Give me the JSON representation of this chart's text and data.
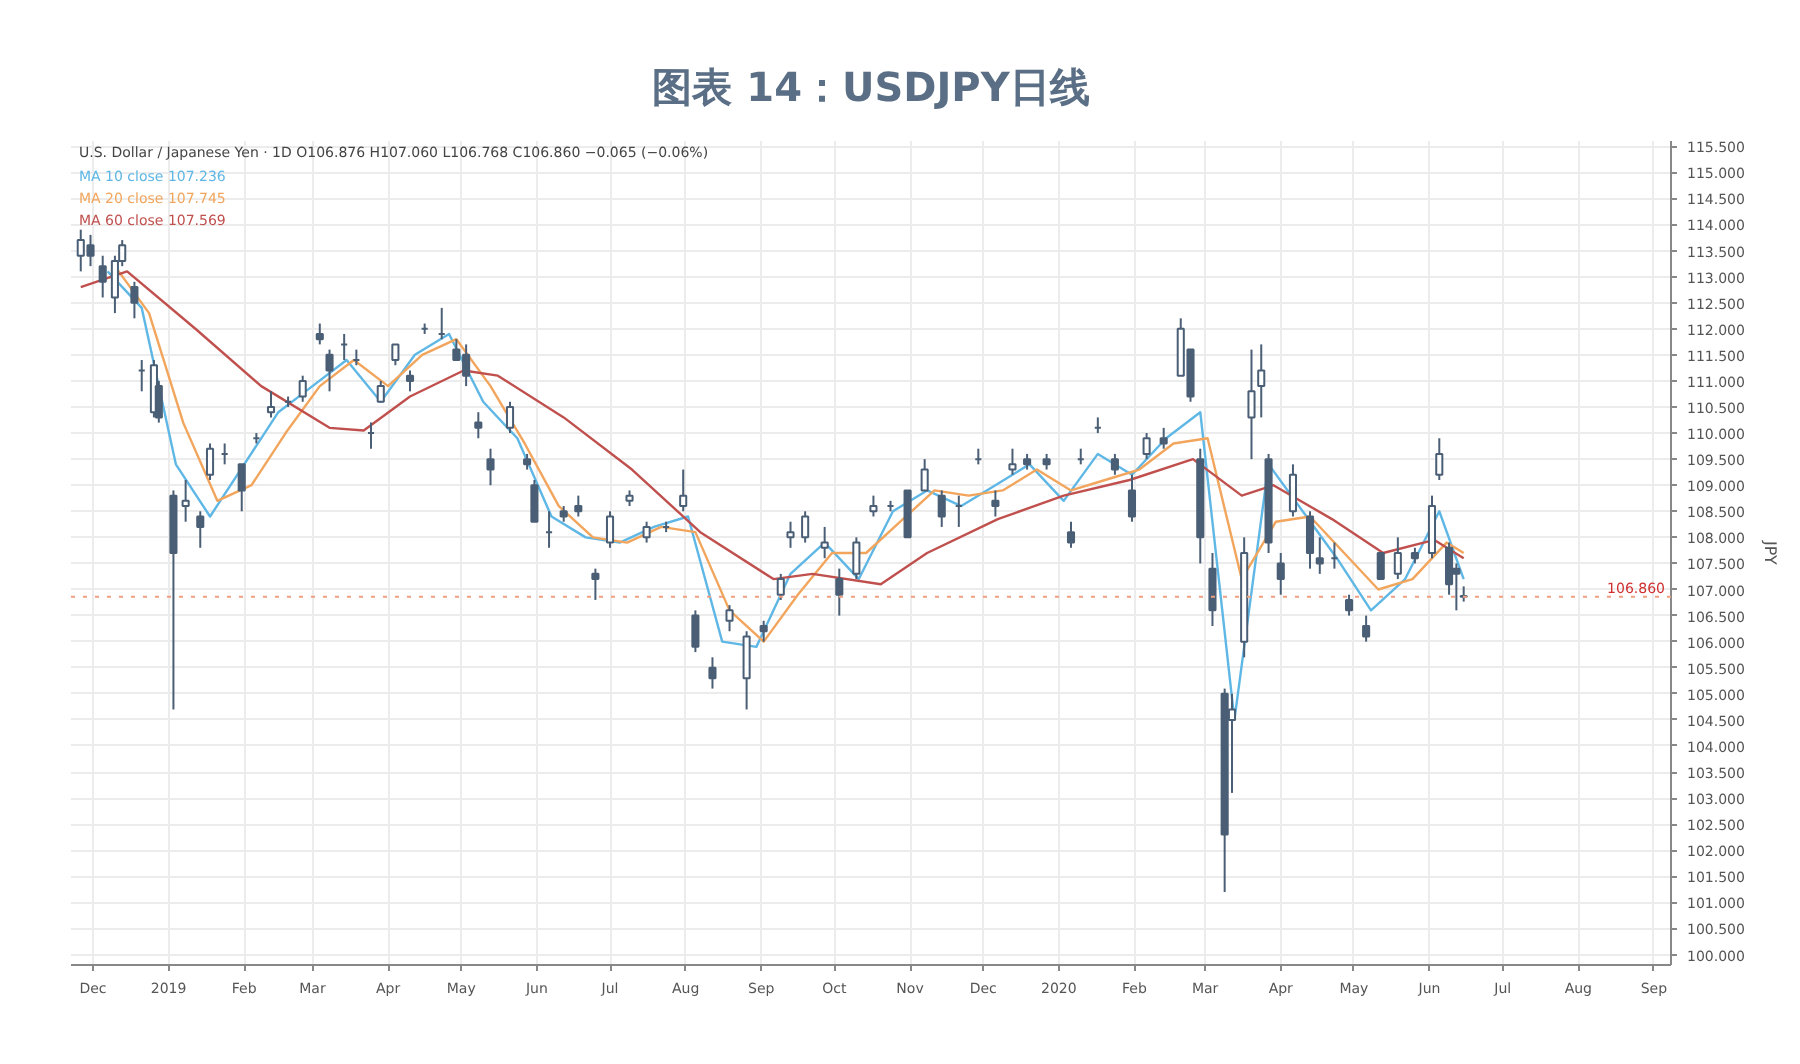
{
  "chart_data": {
    "type": "candlestick",
    "title": "图表 14：USDJPY日线",
    "ylabel": "JPY",
    "annotations": [
      "U.S. Dollar / Japanese Yen · 1D",
      "O106.876 H107.060 L106.768 C106.860 −0.065 (−0.06%)"
    ],
    "xlim": [
      "2018-11-22",
      "2020-09-08"
    ],
    "xticks": [
      {
        "value": "2018-12-01",
        "label": "Dec"
      },
      {
        "value": "2019-01-01",
        "label": "2019"
      },
      {
        "value": "2019-02-01",
        "label": "Feb"
      },
      {
        "value": "2019-03-01",
        "label": "Mar"
      },
      {
        "value": "2019-04-01",
        "label": "Apr"
      },
      {
        "value": "2019-05-01",
        "label": "May"
      },
      {
        "value": "2019-06-01",
        "label": "Jun"
      },
      {
        "value": "2019-07-01",
        "label": "Jul"
      },
      {
        "value": "2019-08-01",
        "label": "Aug"
      },
      {
        "value": "2019-09-01",
        "label": "Sep"
      },
      {
        "value": "2019-10-01",
        "label": "Oct"
      },
      {
        "value": "2019-11-01",
        "label": "Nov"
      },
      {
        "value": "2019-12-01",
        "label": "Dec"
      },
      {
        "value": "2020-01-01",
        "label": "2020"
      },
      {
        "value": "2020-02-01",
        "label": "Feb"
      },
      {
        "value": "2020-03-01",
        "label": "Mar"
      },
      {
        "value": "2020-04-01",
        "label": "Apr"
      },
      {
        "value": "2020-05-01",
        "label": "May"
      },
      {
        "value": "2020-06-01",
        "label": "Jun"
      },
      {
        "value": "2020-07-01",
        "label": "Jul"
      },
      {
        "value": "2020-08-01",
        "label": "Aug"
      },
      {
        "value": "2020-09-01",
        "label": "Sep"
      }
    ],
    "ylim": [
      99.8,
      115.6
    ],
    "yticks": [
      {
        "value": 100,
        "label": "100.000"
      },
      {
        "value": 100.5,
        "label": "100.500"
      },
      {
        "value": 101,
        "label": "101.000"
      },
      {
        "value": 101.5,
        "label": "101.500"
      },
      {
        "value": 102,
        "label": "102.000"
      },
      {
        "value": 102.5,
        "label": "102.500"
      },
      {
        "value": 103,
        "label": "103.000"
      },
      {
        "value": 103.5,
        "label": "103.500"
      },
      {
        "value": 104,
        "label": "104.000"
      },
      {
        "value": 104.5,
        "label": "104.500"
      },
      {
        "value": 105,
        "label": "105.000"
      },
      {
        "value": 105.5,
        "label": "105.500"
      },
      {
        "value": 106,
        "label": "106.000"
      },
      {
        "value": 106.5,
        "label": "106.500"
      },
      {
        "value": 107,
        "label": "107.000"
      },
      {
        "value": 107.5,
        "label": "107.500"
      },
      {
        "value": 108,
        "label": "108.000"
      },
      {
        "value": 108.5,
        "label": "108.500"
      },
      {
        "value": 109,
        "label": "109.000"
      },
      {
        "value": 109.5,
        "label": "109.500"
      },
      {
        "value": 110,
        "label": "110.000"
      },
      {
        "value": 110.5,
        "label": "110.500"
      },
      {
        "value": 111,
        "label": "111.000"
      },
      {
        "value": 111.5,
        "label": "111.500"
      },
      {
        "value": 112,
        "label": "112.000"
      },
      {
        "value": 112.5,
        "label": "112.500"
      },
      {
        "value": 113,
        "label": "113.000"
      },
      {
        "value": 113.5,
        "label": "113.500"
      },
      {
        "value": 114,
        "label": "114.000"
      },
      {
        "value": 114.5,
        "label": "114.500"
      },
      {
        "value": 115,
        "label": "115.000"
      },
      {
        "value": 115.5,
        "label": "115.500"
      }
    ],
    "grid": true,
    "legend": "top left",
    "ref_lines": [
      {
        "axis": "y",
        "value": 106.86,
        "label": "106.860",
        "color": "#f0a080",
        "line_style": "dotted"
      }
    ],
    "color": "#4a5e75",
    "x": [
      "2018-11-26",
      "2018-11-30",
      "2018-12-05",
      "2018-12-10",
      "2018-12-13",
      "2018-12-18",
      "2018-12-21",
      "2018-12-26",
      "2018-12-28",
      "2019-01-03",
      "2019-01-08",
      "2019-01-14",
      "2019-01-18",
      "2019-01-24",
      "2019-01-31",
      "2019-02-06",
      "2019-02-12",
      "2019-02-19",
      "2019-02-25",
      "2019-03-04",
      "2019-03-08",
      "2019-03-14",
      "2019-03-19",
      "2019-03-25",
      "2019-03-29",
      "2019-04-04",
      "2019-04-10",
      "2019-04-16",
      "2019-04-23",
      "2019-04-29",
      "2019-05-03",
      "2019-05-08",
      "2019-05-13",
      "2019-05-21",
      "2019-05-28",
      "2019-05-31",
      "2019-06-06",
      "2019-06-12",
      "2019-06-18",
      "2019-06-25",
      "2019-07-01",
      "2019-07-09",
      "2019-07-16",
      "2019-07-24",
      "2019-07-31",
      "2019-08-05",
      "2019-08-12",
      "2019-08-19",
      "2019-08-26",
      "2019-09-02",
      "2019-09-09",
      "2019-09-13",
      "2019-09-19",
      "2019-09-27",
      "2019-10-03",
      "2019-10-10",
      "2019-10-17",
      "2019-10-24",
      "2019-10-31",
      "2019-11-07",
      "2019-11-14",
      "2019-11-21",
      "2019-11-29",
      "2019-12-06",
      "2019-12-13",
      "2019-12-19",
      "2019-12-27",
      "2020-01-06",
      "2020-01-10",
      "2020-01-17",
      "2020-01-24",
      "2020-01-31",
      "2020-02-06",
      "2020-02-13",
      "2020-02-20",
      "2020-02-24",
      "2020-02-28",
      "2020-03-04",
      "2020-03-09",
      "2020-03-12",
      "2020-03-17",
      "2020-03-20",
      "2020-03-24",
      "2020-03-27",
      "2020-04-01",
      "2020-04-06",
      "2020-04-13",
      "2020-04-17",
      "2020-04-23",
      "2020-04-29",
      "2020-05-06",
      "2020-05-12",
      "2020-05-19",
      "2020-05-26",
      "2020-06-02",
      "2020-06-05",
      "2020-06-09",
      "2020-06-12",
      "2020-06-15"
    ],
    "ohlc": [
      [
        113.4,
        113.9,
        113.1,
        113.7
      ],
      [
        113.6,
        113.8,
        113.2,
        113.4
      ],
      [
        113.2,
        113.4,
        112.6,
        112.9
      ],
      [
        112.6,
        113.4,
        112.3,
        113.3
      ],
      [
        113.3,
        113.7,
        113.2,
        113.6
      ],
      [
        112.8,
        112.9,
        112.2,
        112.5
      ],
      [
        111.2,
        111.4,
        110.8,
        111.2
      ],
      [
        110.4,
        111.4,
        110.3,
        111.3
      ],
      [
        110.9,
        111.0,
        110.2,
        110.3
      ],
      [
        108.8,
        108.9,
        104.7,
        107.7
      ],
      [
        108.6,
        109.1,
        108.3,
        108.7
      ],
      [
        108.4,
        108.5,
        107.8,
        108.2
      ],
      [
        109.2,
        109.8,
        109.1,
        109.7
      ],
      [
        109.6,
        109.8,
        109.4,
        109.6
      ],
      [
        109.4,
        109.4,
        108.5,
        108.9
      ],
      [
        109.9,
        110.0,
        109.8,
        109.9
      ],
      [
        110.4,
        110.8,
        110.3,
        110.5
      ],
      [
        110.6,
        110.7,
        110.5,
        110.6
      ],
      [
        110.7,
        111.1,
        110.6,
        111.0
      ],
      [
        111.9,
        112.1,
        111.7,
        111.8
      ],
      [
        111.5,
        111.6,
        110.8,
        111.2
      ],
      [
        111.7,
        111.9,
        111.4,
        111.7
      ],
      [
        111.4,
        111.6,
        111.3,
        111.4
      ],
      [
        110.0,
        110.2,
        109.7,
        110.0
      ],
      [
        110.6,
        111.0,
        110.6,
        110.9
      ],
      [
        111.4,
        111.7,
        111.3,
        111.7
      ],
      [
        111.1,
        111.2,
        110.8,
        111.0
      ],
      [
        112.0,
        112.1,
        111.9,
        112.0
      ],
      [
        111.9,
        112.4,
        111.8,
        111.9
      ],
      [
        111.6,
        111.8,
        111.4,
        111.4
      ],
      [
        111.5,
        111.7,
        110.9,
        111.1
      ],
      [
        110.2,
        110.4,
        109.9,
        110.1
      ],
      [
        109.5,
        109.7,
        109.0,
        109.3
      ],
      [
        110.1,
        110.6,
        110.0,
        110.5
      ],
      [
        109.5,
        109.6,
        109.3,
        109.4
      ],
      [
        109.0,
        109.1,
        108.3,
        108.3
      ],
      [
        108.1,
        108.5,
        107.8,
        108.1
      ],
      [
        108.5,
        108.6,
        108.3,
        108.4
      ],
      [
        108.6,
        108.8,
        108.4,
        108.5
      ],
      [
        107.3,
        107.4,
        106.8,
        107.2
      ],
      [
        107.9,
        108.5,
        107.8,
        108.4
      ],
      [
        108.7,
        108.9,
        108.6,
        108.8
      ],
      [
        108.0,
        108.3,
        107.9,
        108.2
      ],
      [
        108.2,
        108.3,
        108.1,
        108.2
      ],
      [
        108.6,
        109.3,
        108.5,
        108.8
      ],
      [
        106.5,
        106.6,
        105.8,
        105.9
      ],
      [
        105.5,
        105.7,
        105.1,
        105.3
      ],
      [
        106.4,
        106.7,
        106.2,
        106.6
      ],
      [
        105.3,
        106.2,
        104.7,
        106.1
      ],
      [
        106.3,
        106.4,
        106.0,
        106.2
      ],
      [
        106.9,
        107.3,
        106.8,
        107.2
      ],
      [
        108.0,
        108.3,
        107.8,
        108.1
      ],
      [
        108.0,
        108.5,
        107.9,
        108.4
      ],
      [
        107.8,
        108.2,
        107.6,
        107.9
      ],
      [
        107.2,
        107.4,
        106.5,
        106.9
      ],
      [
        107.3,
        108.0,
        107.2,
        107.9
      ],
      [
        108.5,
        108.8,
        108.4,
        108.6
      ],
      [
        108.6,
        108.7,
        108.5,
        108.6
      ],
      [
        108.9,
        108.9,
        108.0,
        108.0
      ],
      [
        108.9,
        109.5,
        108.9,
        109.3
      ],
      [
        108.8,
        108.9,
        108.2,
        108.4
      ],
      [
        108.6,
        108.8,
        108.2,
        108.6
      ],
      [
        109.5,
        109.7,
        109.4,
        109.5
      ],
      [
        108.7,
        108.9,
        108.4,
        108.6
      ],
      [
        109.3,
        109.7,
        109.2,
        109.4
      ],
      [
        109.5,
        109.6,
        109.3,
        109.4
      ],
      [
        109.5,
        109.6,
        109.3,
        109.4
      ],
      [
        108.1,
        108.3,
        107.8,
        107.9
      ],
      [
        109.5,
        109.7,
        109.4,
        109.5
      ],
      [
        110.1,
        110.3,
        110.0,
        110.1
      ],
      [
        109.5,
        109.6,
        109.2,
        109.3
      ],
      [
        108.9,
        109.2,
        108.3,
        108.4
      ],
      [
        109.6,
        110.0,
        109.5,
        109.9
      ],
      [
        109.9,
        110.1,
        109.7,
        109.8
      ],
      [
        111.1,
        112.2,
        111.1,
        112.0
      ],
      [
        111.6,
        111.6,
        110.6,
        110.7
      ],
      [
        109.5,
        109.7,
        107.5,
        108.0
      ],
      [
        107.4,
        107.7,
        106.3,
        106.6
      ],
      [
        105.0,
        105.1,
        101.2,
        102.3
      ],
      [
        104.5,
        105.0,
        103.1,
        104.7
      ],
      [
        106.0,
        108.0,
        105.7,
        107.7
      ],
      [
        110.3,
        111.6,
        109.5,
        110.8
      ],
      [
        110.9,
        111.7,
        110.3,
        111.2
      ],
      [
        109.5,
        109.6,
        107.7,
        107.9
      ],
      [
        107.5,
        107.7,
        106.9,
        107.2
      ],
      [
        108.5,
        109.4,
        108.4,
        109.2
      ],
      [
        108.4,
        108.5,
        107.4,
        107.7
      ],
      [
        107.6,
        108.0,
        107.3,
        107.5
      ],
      [
        107.6,
        107.9,
        107.4,
        107.6
      ],
      [
        106.8,
        106.9,
        106.5,
        106.6
      ],
      [
        106.3,
        106.5,
        106.0,
        106.1
      ],
      [
        107.7,
        107.7,
        107.2,
        107.2
      ],
      [
        107.3,
        108.0,
        107.2,
        107.7
      ],
      [
        107.7,
        107.8,
        107.5,
        107.6
      ],
      [
        107.7,
        108.8,
        107.6,
        108.6
      ],
      [
        109.2,
        109.9,
        109.1,
        109.6
      ],
      [
        107.8,
        107.9,
        106.9,
        107.1
      ],
      [
        107.4,
        107.5,
        106.6,
        107.3
      ],
      [
        106.876,
        107.06,
        106.768,
        106.86
      ]
    ],
    "series": [
      {
        "name": "MA 10 close 107.236",
        "type": "line",
        "color": "#5fb7e5",
        "x": [
          "2018-12-07",
          "2018-12-21",
          "2019-01-04",
          "2019-01-18",
          "2019-02-01",
          "2019-02-15",
          "2019-03-01",
          "2019-03-15",
          "2019-03-29",
          "2019-04-12",
          "2019-04-26",
          "2019-05-10",
          "2019-05-24",
          "2019-06-07",
          "2019-06-21",
          "2019-07-05",
          "2019-07-19",
          "2019-08-02",
          "2019-08-16",
          "2019-08-30",
          "2019-09-13",
          "2019-09-27",
          "2019-10-11",
          "2019-10-25",
          "2019-11-08",
          "2019-11-22",
          "2019-12-06",
          "2019-12-20",
          "2020-01-03",
          "2020-01-17",
          "2020-01-31",
          "2020-02-14",
          "2020-02-28",
          "2020-03-13",
          "2020-03-27",
          "2020-04-10",
          "2020-04-24",
          "2020-05-08",
          "2020-05-22",
          "2020-06-05",
          "2020-06-15"
        ],
        "values": [
          113.1,
          112.4,
          109.4,
          108.4,
          109.4,
          110.4,
          110.9,
          111.4,
          110.6,
          111.5,
          111.9,
          110.6,
          109.9,
          108.4,
          108.0,
          107.9,
          108.2,
          108.4,
          106.0,
          105.9,
          107.3,
          107.9,
          107.2,
          108.5,
          108.9,
          108.6,
          109.0,
          109.4,
          108.7,
          109.6,
          109.2,
          109.9,
          110.4,
          104.5,
          109.4,
          108.5,
          107.6,
          106.6,
          107.2,
          108.5,
          107.2
        ]
      },
      {
        "name": "MA 20 close 107.745",
        "type": "line",
        "color": "#f2a55c",
        "x": [
          "2018-12-10",
          "2018-12-24",
          "2019-01-07",
          "2019-01-21",
          "2019-02-04",
          "2019-02-18",
          "2019-03-04",
          "2019-03-18",
          "2019-04-01",
          "2019-04-15",
          "2019-04-29",
          "2019-05-13",
          "2019-05-27",
          "2019-06-10",
          "2019-06-24",
          "2019-07-08",
          "2019-07-22",
          "2019-08-05",
          "2019-08-19",
          "2019-09-02",
          "2019-09-16",
          "2019-09-30",
          "2019-10-14",
          "2019-10-28",
          "2019-11-11",
          "2019-11-25",
          "2019-12-09",
          "2019-12-23",
          "2020-01-06",
          "2020-01-20",
          "2020-02-03",
          "2020-02-17",
          "2020-03-02",
          "2020-03-16",
          "2020-03-30",
          "2020-04-13",
          "2020-04-27",
          "2020-05-11",
          "2020-05-25",
          "2020-06-08",
          "2020-06-15"
        ],
        "values": [
          113.2,
          112.3,
          110.2,
          108.7,
          109.0,
          110.0,
          110.9,
          111.4,
          110.9,
          111.5,
          111.8,
          110.9,
          109.8,
          108.6,
          108.0,
          107.9,
          108.2,
          108.1,
          106.6,
          106.0,
          106.9,
          107.7,
          107.7,
          108.3,
          108.9,
          108.8,
          108.9,
          109.3,
          108.9,
          109.1,
          109.3,
          109.8,
          109.9,
          107.2,
          108.3,
          108.4,
          107.7,
          107.0,
          107.2,
          107.9,
          107.7
        ]
      },
      {
        "name": "MA 60 close 107.569",
        "type": "line",
        "color": "#c0504d",
        "x": [
          "2018-11-26",
          "2018-12-15",
          "2019-01-12",
          "2019-02-08",
          "2019-03-08",
          "2019-03-22",
          "2019-04-10",
          "2019-05-02",
          "2019-05-16",
          "2019-06-12",
          "2019-07-10",
          "2019-08-07",
          "2019-09-06",
          "2019-09-22",
          "2019-10-20",
          "2019-11-08",
          "2019-12-07",
          "2020-01-03",
          "2020-01-30",
          "2020-02-25",
          "2020-03-16",
          "2020-03-29",
          "2020-04-22",
          "2020-05-13",
          "2020-06-03",
          "2020-06-15"
        ],
        "values": [
          112.8,
          113.1,
          112.0,
          110.9,
          110.1,
          110.05,
          110.7,
          111.2,
          111.1,
          110.3,
          109.3,
          108.1,
          107.2,
          107.3,
          107.1,
          107.7,
          108.35,
          108.8,
          109.1,
          109.5,
          108.8,
          109.0,
          108.35,
          107.7,
          107.95,
          107.6
        ]
      }
    ]
  }
}
